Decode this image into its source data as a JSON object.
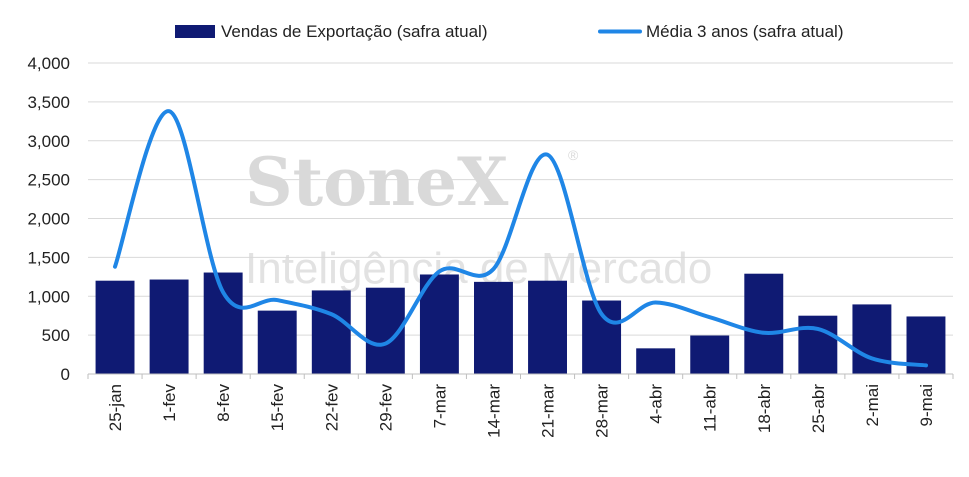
{
  "chart_data": {
    "type": "bar",
    "categories": [
      "25-jan",
      "1-fev",
      "8-fev",
      "15-fev",
      "22-fev",
      "29-fev",
      "7-mar",
      "14-mar",
      "21-mar",
      "28-mar",
      "4-abr",
      "11-abr",
      "18-abr",
      "25-abr",
      "2-mai",
      "9-mai"
    ],
    "series": [
      {
        "name": "Vendas de Exportação (safra atual)",
        "type": "bar",
        "color": "#0f1a73",
        "values": [
          1200,
          1215,
          1305,
          815,
          1075,
          1110,
          1280,
          1185,
          1200,
          945,
          330,
          495,
          1290,
          750,
          895,
          740
        ]
      },
      {
        "name": "Média 3 anos (safra atual)",
        "type": "line",
        "color": "#1f86e6",
        "values": [
          1380,
          3380,
          1050,
          950,
          770,
          390,
          1320,
          1350,
          2820,
          770,
          920,
          730,
          530,
          580,
          200,
          110
        ]
      }
    ],
    "yticks": [
      "0",
      "500",
      "1,000",
      "1,500",
      "2,000",
      "2,500",
      "3,000",
      "3,500",
      "4,000"
    ],
    "ylim": [
      0,
      4000
    ],
    "grid": true,
    "legend_position": "top-center",
    "watermark": {
      "brand": "StoneX",
      "registered": "®",
      "tagline": "Inteligência de Mercado"
    }
  }
}
